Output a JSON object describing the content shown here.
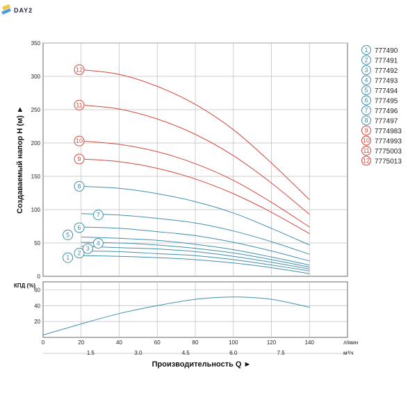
{
  "brand": {
    "logo_text": "DAY2"
  },
  "colors": {
    "blue": "#3f8fab",
    "red": "#d2463c",
    "grid": "#bbbbbb",
    "frame": "#666666"
  },
  "chart_data": [
    {
      "type": "line",
      "ylabel": "Создаваемый напор H (м) ►",
      "xlim": [
        0,
        160
      ],
      "ylim": [
        0,
        350
      ],
      "y_ticks": [
        0,
        50,
        100,
        150,
        200,
        250,
        300,
        350
      ],
      "series": [
        {
          "name": "1",
          "model": "777490",
          "color": "blue",
          "x": [
            20,
            40,
            60,
            80,
            100,
            120,
            140
          ],
          "y": [
            31,
            30,
            28,
            25,
            20,
            13,
            4
          ]
        },
        {
          "name": "2",
          "model": "777491",
          "color": "blue",
          "x": [
            20,
            40,
            60,
            80,
            100,
            120,
            140
          ],
          "y": [
            38,
            37,
            34,
            31,
            25,
            17,
            8
          ]
        },
        {
          "name": "3",
          "model": "777492",
          "color": "blue",
          "x": [
            20,
            40,
            60,
            80,
            100,
            120,
            140
          ],
          "y": [
            45,
            43,
            41,
            37,
            30,
            21,
            11
          ]
        },
        {
          "name": "4",
          "model": "777493",
          "color": "blue",
          "x": [
            20,
            40,
            60,
            80,
            100,
            120,
            140
          ],
          "y": [
            51,
            50,
            47,
            42,
            35,
            25,
            14
          ]
        },
        {
          "name": "5",
          "model": "777494",
          "color": "blue",
          "x": [
            20,
            40,
            60,
            80,
            100,
            120,
            140
          ],
          "y": [
            59,
            57,
            54,
            48,
            40,
            29,
            17
          ]
        },
        {
          "name": "6",
          "model": "777495",
          "color": "blue",
          "x": [
            20,
            40,
            60,
            80,
            100,
            120,
            140
          ],
          "y": [
            74,
            72,
            67,
            61,
            51,
            38,
            23
          ]
        },
        {
          "name": "7",
          "model": "777496",
          "color": "blue",
          "x": [
            20,
            40,
            60,
            80,
            100,
            120,
            140
          ],
          "y": [
            94,
            92,
            87,
            80,
            68,
            52,
            33
          ]
        },
        {
          "name": "8",
          "model": "777497",
          "color": "blue",
          "x": [
            20,
            40,
            60,
            80,
            100,
            120,
            140
          ],
          "y": [
            135,
            132,
            124,
            112,
            95,
            72,
            47
          ]
        },
        {
          "name": "9",
          "model": "7774983",
          "color": "red",
          "x": [
            20,
            40,
            60,
            80,
            100,
            120,
            140
          ],
          "y": [
            176,
            172,
            162,
            146,
            124,
            96,
            64
          ]
        },
        {
          "name": "10",
          "model": "7774993",
          "color": "red",
          "x": [
            20,
            40,
            60,
            80,
            100,
            120,
            140
          ],
          "y": [
            203,
            198,
            187,
            169,
            144,
            111,
            74
          ]
        },
        {
          "name": "11",
          "model": "7775003",
          "color": "red",
          "x": [
            20,
            40,
            60,
            80,
            100,
            120,
            140
          ],
          "y": [
            257,
            251,
            236,
            213,
            181,
            140,
            93
          ]
        },
        {
          "name": "12",
          "model": "7775013",
          "color": "red",
          "x": [
            20,
            40,
            60,
            80,
            100,
            120,
            140
          ],
          "y": [
            310,
            303,
            285,
            258,
            220,
            170,
            115
          ]
        }
      ]
    },
    {
      "type": "line",
      "ylabel": "КПД (%)",
      "xlabel": "Производительность Q ►",
      "xlim": [
        0,
        160
      ],
      "ylim": [
        0,
        70
      ],
      "y_ticks": [
        0,
        20,
        40,
        60
      ],
      "x_ticks_lmin": [
        0,
        20,
        40,
        60,
        80,
        100,
        120,
        140
      ],
      "x_unit_lmin": "л/мин",
      "x_ticks_m3h": [
        "1.5",
        "3.0",
        "4.5",
        "6.0",
        "7.5"
      ],
      "x_ticks_m3h_pos_lmin": [
        25,
        50,
        75,
        100,
        125
      ],
      "x_unit_m3h": "м³/ч",
      "series": [
        {
          "color": "blue",
          "x": [
            0,
            20,
            40,
            60,
            80,
            100,
            120,
            140
          ],
          "y": [
            3,
            17,
            30,
            40,
            48,
            51,
            48,
            38
          ]
        }
      ]
    }
  ]
}
